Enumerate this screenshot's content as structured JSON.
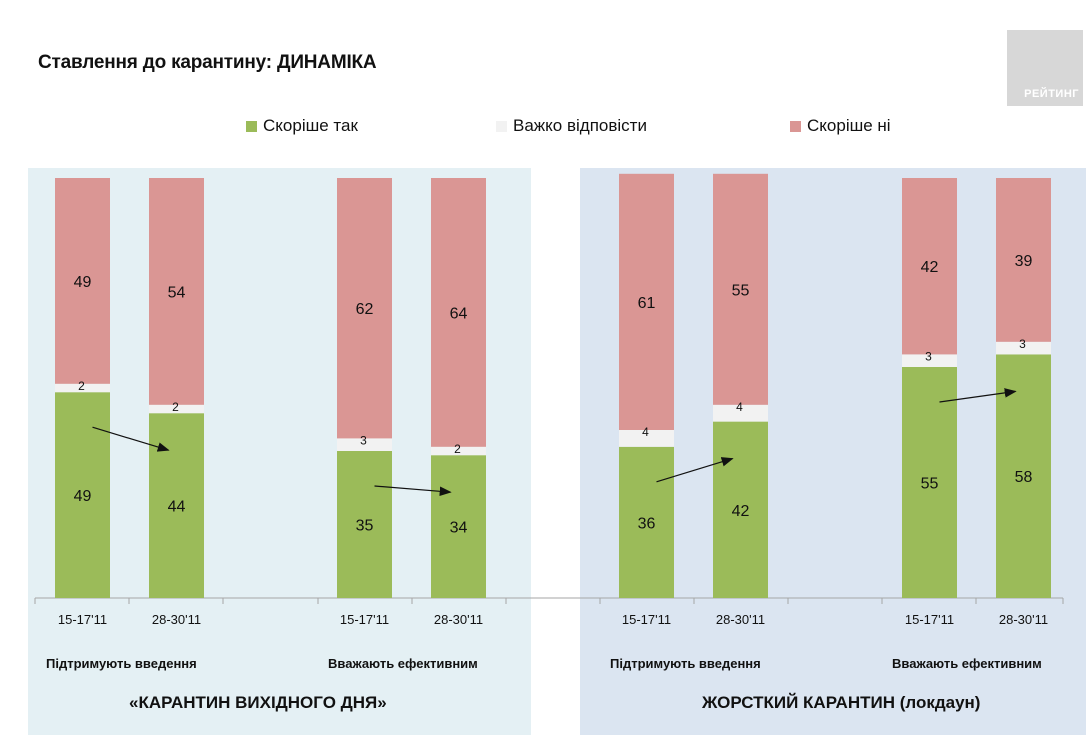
{
  "title": "Ставлення до карантину: ДИНАМІКА",
  "logo_text": "РЕЙТИНГ",
  "legend": [
    {
      "label": "Скоріше так",
      "color": "#9bbb59"
    },
    {
      "label": "Важко відповісти",
      "color": "#f2f2f2"
    },
    {
      "label": "Скоріше ні",
      "color": "#da9694"
    }
  ],
  "sections": [
    {
      "label": "«КАРАНТИН ВИХІДНОГО ДНЯ»",
      "background": "#e4f0f4"
    },
    {
      "label": "ЖОРСТКИЙ КАРАНТИН (локдаун)",
      "background": "#dbe5f1"
    }
  ],
  "groups": [
    {
      "label": "Підтримують введення"
    },
    {
      "label": "Вважають ефективним"
    },
    {
      "label": "Підтримують введення"
    },
    {
      "label": "Вважають ефективним"
    }
  ],
  "chart_data": {
    "type": "bar",
    "stacked": true,
    "categories": [
      "15-17'11",
      "28-30'11",
      "15-17'11",
      "28-30'11",
      "15-17'11",
      "28-30'11",
      "15-17'11",
      "28-30'11"
    ],
    "series": [
      {
        "name": "Скоріше так",
        "color": "#9bbb59",
        "values": [
          49,
          44,
          35,
          34,
          36,
          42,
          55,
          58
        ]
      },
      {
        "name": "Важко відповісти",
        "color": "#f2f2f2",
        "values": [
          2,
          2,
          3,
          2,
          4,
          4,
          3,
          3
        ]
      },
      {
        "name": "Скоріше ні",
        "color": "#da9694",
        "values": [
          49,
          54,
          62,
          64,
          61,
          55,
          42,
          39
        ]
      }
    ],
    "ylim": [
      0,
      100
    ],
    "grid": false,
    "legend_position": "top"
  }
}
